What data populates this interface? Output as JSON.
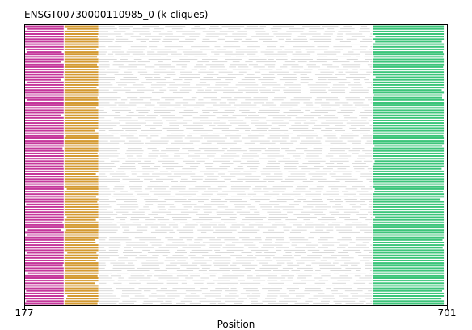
{
  "chart_data": {
    "type": "alignment",
    "title": "ENSGT00730000110985_0 (k-cliques)",
    "xlabel": "Position",
    "xlim": [
      177,
      701
    ],
    "x_ticks": [
      "177",
      "701"
    ],
    "n_sequences": 110,
    "background_color": "#d9d9d9",
    "segments": [
      {
        "name": "",
        "color": "#c5379b",
        "start": 177,
        "end": 225
      },
      {
        "name": "",
        "color": "#d49a32",
        "start": 226,
        "end": 268
      },
      {
        "name": "",
        "color": "#3cc57a",
        "start": 609,
        "end": 697
      }
    ]
  }
}
